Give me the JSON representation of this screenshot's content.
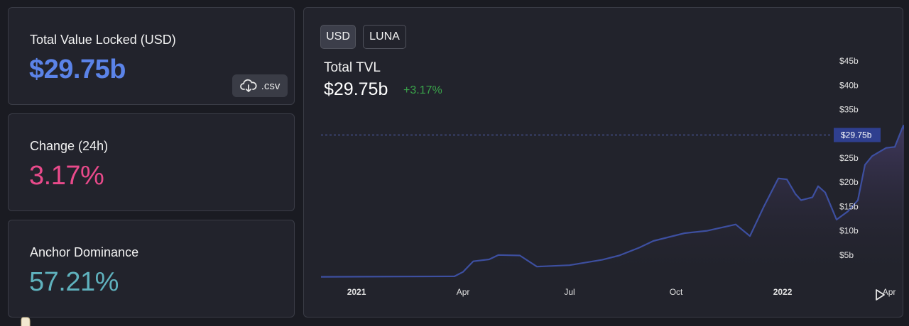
{
  "stats": [
    {
      "label": "Total Value Locked (USD)",
      "value": "$29.75b",
      "color": "#5b83e8"
    },
    {
      "label": "Change (24h)",
      "value": "3.17%",
      "color": "#e94a8b"
    },
    {
      "label": "Anchor Dominance",
      "value": "57.21%",
      "color": "#5fb1bd"
    }
  ],
  "csv_label": ".csv",
  "toggles": [
    "USD",
    "LUNA"
  ],
  "chart_header": {
    "title": "Total TVL",
    "value": "$29.75b",
    "change": "+3.17%",
    "change_color": "#3aa44a"
  },
  "chart_data": {
    "type": "area",
    "line_color": "#3d4fa0",
    "x_ticks": [
      {
        "label": "2021",
        "t": 0.0417,
        "bold": true
      },
      {
        "label": "Apr",
        "t": 0.1667,
        "bold": false
      },
      {
        "label": "Jul",
        "t": 0.2917,
        "bold": false
      },
      {
        "label": "Oct",
        "t": 0.4167,
        "bold": false
      },
      {
        "label": "2022",
        "t": 0.5417,
        "bold": true
      },
      {
        "label": "Apr",
        "t": 0.6667,
        "bold": false
      }
    ],
    "t_range": [
      0,
      0.743
    ],
    "y_ticks": [
      "$5b",
      "$10b",
      "$15b",
      "$20b",
      "$25b",
      "$30b",
      "$35b",
      "$40b",
      "$45b"
    ],
    "ylim": [
      0,
      45
    ],
    "current_label": "$29.75b",
    "current_value": 29.75,
    "points": [
      [
        0,
        0.5
      ],
      [
        0.1567,
        0.6
      ],
      [
        0.1667,
        1.5
      ],
      [
        0.1787,
        3.7
      ],
      [
        0.1973,
        4.1
      ],
      [
        0.2083,
        5.0
      ],
      [
        0.2333,
        4.9
      ],
      [
        0.2533,
        2.6
      ],
      [
        0.2917,
        2.9
      ],
      [
        0.33,
        4.0
      ],
      [
        0.35,
        4.9
      ],
      [
        0.3733,
        6.5
      ],
      [
        0.39,
        7.9
      ],
      [
        0.4267,
        9.5
      ],
      [
        0.4533,
        10.0
      ],
      [
        0.4867,
        11.3
      ],
      [
        0.5033,
        8.9
      ],
      [
        0.52,
        15.1
      ],
      [
        0.5367,
        20.8
      ],
      [
        0.5467,
        20.6
      ],
      [
        0.5567,
        17.6
      ],
      [
        0.5633,
        16.3
      ],
      [
        0.5767,
        16.9
      ],
      [
        0.5833,
        19.2
      ],
      [
        0.5917,
        17.9
      ],
      [
        0.605,
        12.3
      ],
      [
        0.6183,
        14.0
      ],
      [
        0.63,
        16.3
      ],
      [
        0.6383,
        23.6
      ],
      [
        0.6467,
        25.4
      ],
      [
        0.6633,
        27.1
      ],
      [
        0.6733,
        27.3
      ],
      [
        0.6833,
        31.7
      ],
      [
        0.6933,
        25.9
      ],
      [
        0.705,
        25.6
      ],
      [
        0.7133,
        30.0
      ],
      [
        0.7267,
        29.8
      ],
      [
        0.743,
        29.75
      ]
    ]
  }
}
